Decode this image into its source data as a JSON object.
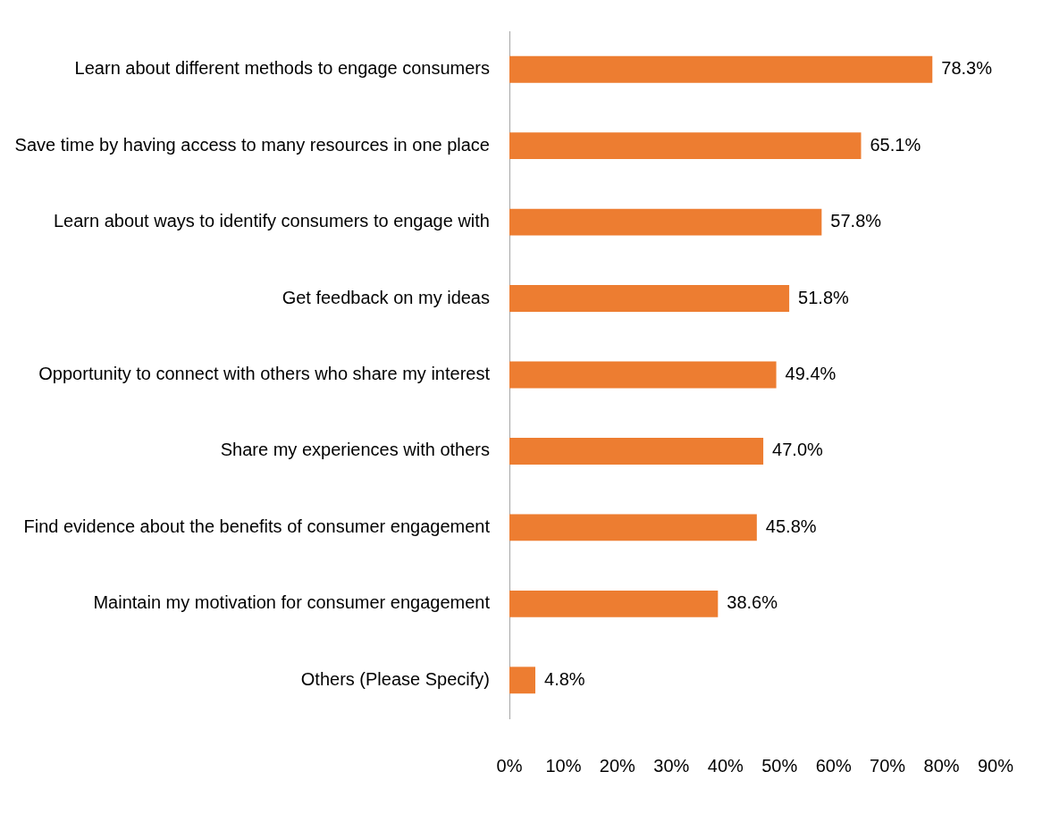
{
  "chart_data": {
    "type": "bar",
    "orientation": "horizontal",
    "categories": [
      "Learn about different methods to engage consumers",
      "Save time by having access to many resources in one place",
      "Learn about ways to identify consumers to engage with",
      "Get feedback on my ideas",
      "Opportunity to connect with others who share my interest",
      "Share my experiences with others",
      "Find evidence about the benefits of consumer engagement",
      "Maintain my motivation for consumer engagement",
      "Others (Please Specify)"
    ],
    "values": [
      78.3,
      65.1,
      57.8,
      51.8,
      49.4,
      47.0,
      45.8,
      38.6,
      4.8
    ],
    "value_labels": [
      "78.3%",
      "65.1%",
      "57.8%",
      "51.8%",
      "49.4%",
      "47.0%",
      "45.8%",
      "38.6%",
      "4.8%"
    ],
    "color": "#ed7d31",
    "xlim": [
      0,
      90
    ],
    "xticks": [
      {
        "value": 0,
        "label": "0%"
      },
      {
        "value": 10,
        "label": "10%"
      },
      {
        "value": 20,
        "label": "20%"
      },
      {
        "value": 30,
        "label": "30%"
      },
      {
        "value": 40,
        "label": "40%"
      },
      {
        "value": 50,
        "label": "50%"
      },
      {
        "value": 60,
        "label": "60%"
      },
      {
        "value": 70,
        "label": "70%"
      },
      {
        "value": 80,
        "label": "80%"
      },
      {
        "value": 90,
        "label": "90%"
      }
    ]
  }
}
